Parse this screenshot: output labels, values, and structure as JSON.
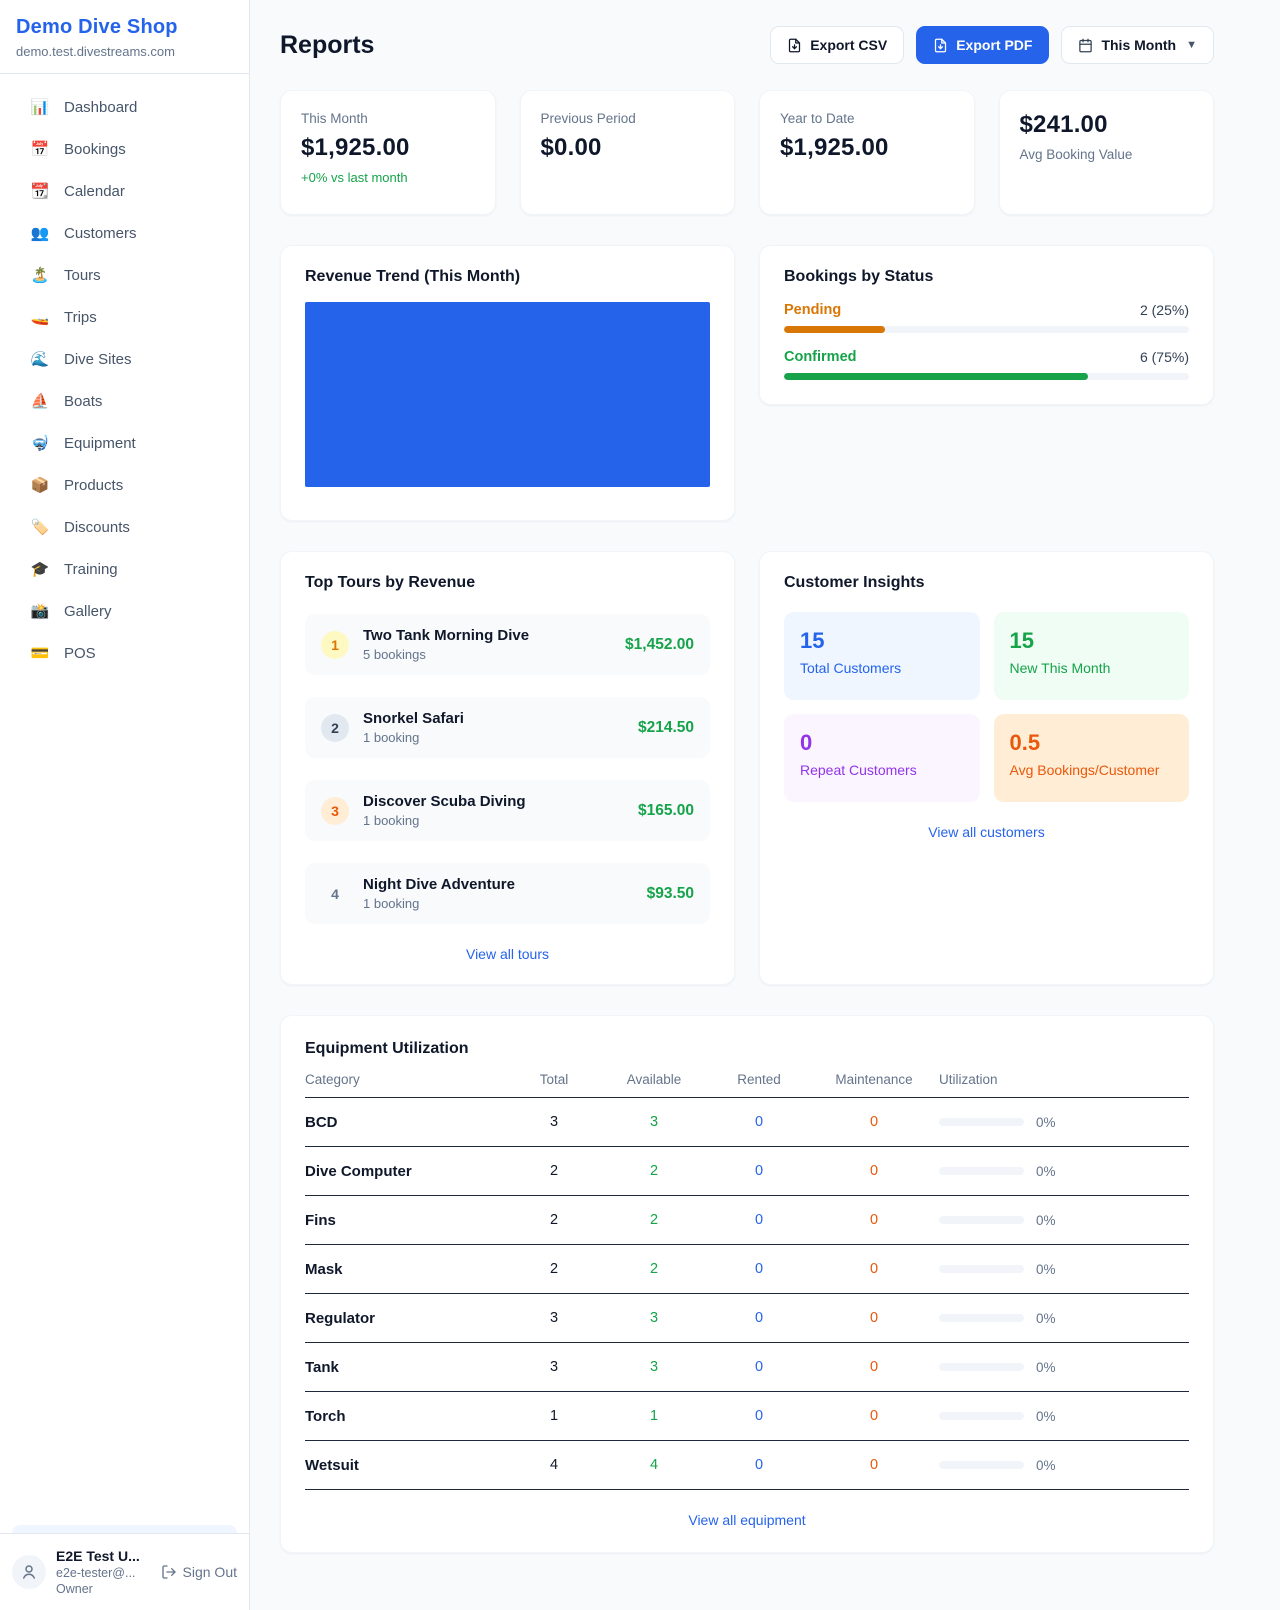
{
  "sidebar": {
    "shop_name": "Demo Dive Shop",
    "shop_domain": "demo.test.divestreams.com",
    "nav": [
      {
        "icon": "📊",
        "label": "Dashboard",
        "slug": "dashboard"
      },
      {
        "icon": "📅",
        "label": "Bookings",
        "slug": "bookings"
      },
      {
        "icon": "📆",
        "label": "Calendar",
        "slug": "calendar"
      },
      {
        "icon": "👥",
        "label": "Customers",
        "slug": "customers"
      },
      {
        "icon": "🏝️",
        "label": "Tours",
        "slug": "tours"
      },
      {
        "icon": "🚤",
        "label": "Trips",
        "slug": "trips"
      },
      {
        "icon": "🌊",
        "label": "Dive Sites",
        "slug": "dive-sites"
      },
      {
        "icon": "⛵",
        "label": "Boats",
        "slug": "boats"
      },
      {
        "icon": "🤿",
        "label": "Equipment",
        "slug": "equipment"
      },
      {
        "icon": "📦",
        "label": "Products",
        "slug": "products"
      },
      {
        "icon": "🏷️",
        "label": "Discounts",
        "slug": "discounts"
      },
      {
        "icon": "🎓",
        "label": "Training",
        "slug": "training"
      },
      {
        "icon": "📸",
        "label": "Gallery",
        "slug": "gallery"
      },
      {
        "icon": "💳",
        "label": "POS",
        "slug": "pos"
      }
    ],
    "user": {
      "name": "E2E Test U...",
      "email": "e2e-tester@...",
      "role": "Owner",
      "sign_out_label": "Sign Out"
    }
  },
  "header": {
    "title": "Reports",
    "export_csv_label": "Export CSV",
    "export_pdf_label": "Export PDF",
    "period_label": "This Month"
  },
  "stats": [
    {
      "label": "This Month",
      "value": "$1,925.00",
      "delta": "+0% vs last month"
    },
    {
      "label": "Previous Period",
      "value": "$0.00"
    },
    {
      "label": "Year to Date",
      "value": "$1,925.00"
    },
    {
      "label": "Avg Booking Value",
      "value": "$241.00",
      "value_first": true
    }
  ],
  "revenue_trend": {
    "title": "Revenue Trend (This Month)",
    "bar_color": "#2563eb",
    "fill_pct": 100
  },
  "bookings_by_status": {
    "title": "Bookings by Status",
    "items": [
      {
        "label": "Pending",
        "count": "2 (25%)",
        "pct": 25,
        "color": "#d97706"
      },
      {
        "label": "Confirmed",
        "count": "6 (75%)",
        "pct": 75,
        "color": "#16a34a"
      }
    ]
  },
  "top_tours": {
    "title": "Top Tours by Revenue",
    "view_all_label": "View all tours",
    "items": [
      {
        "rank": "1",
        "name": "Two Tank Morning Dive",
        "bookings": "5 bookings",
        "revenue": "$1,452.00",
        "badge_bg": "#fef9c3",
        "badge_color": "#d97706"
      },
      {
        "rank": "2",
        "name": "Snorkel Safari",
        "bookings": "1 booking",
        "revenue": "$214.50",
        "badge_bg": "#e2e8f0",
        "badge_color": "#334155"
      },
      {
        "rank": "3",
        "name": "Discover Scuba Diving",
        "bookings": "1 booking",
        "revenue": "$165.00",
        "badge_bg": "#ffedd5",
        "badge_color": "#ea580c"
      },
      {
        "rank": "4",
        "name": "Night Dive Adventure",
        "bookings": "1 booking",
        "revenue": "$93.50",
        "badge_bg": "transparent",
        "badge_color": "#64748b"
      }
    ]
  },
  "customer_insights": {
    "title": "Customer Insights",
    "view_all_label": "View all customers",
    "tiles": [
      {
        "value": "15",
        "label": "Total Customers",
        "bg": "#eff6ff",
        "color": "#2563eb"
      },
      {
        "value": "15",
        "label": "New This Month",
        "bg": "#f0fdf4",
        "color": "#16a34a"
      },
      {
        "value": "0",
        "label": "Repeat Customers",
        "bg": "#faf5ff",
        "color": "#9333ea"
      },
      {
        "value": "0.5",
        "label": "Avg Bookings/Customer",
        "bg": "#ffedd5",
        "color": "#ea580c"
      }
    ]
  },
  "equipment": {
    "title": "Equipment Utilization",
    "view_all_label": "View all equipment",
    "columns": [
      "Category",
      "Total",
      "Available",
      "Rented",
      "Maintenance",
      "Utilization"
    ],
    "rows": [
      {
        "category": "BCD",
        "total": "3",
        "available": "3",
        "rented": "0",
        "maintenance": "0",
        "utilization": "0%"
      },
      {
        "category": "Dive Computer",
        "total": "2",
        "available": "2",
        "rented": "0",
        "maintenance": "0",
        "utilization": "0%"
      },
      {
        "category": "Fins",
        "total": "2",
        "available": "2",
        "rented": "0",
        "maintenance": "0",
        "utilization": "0%"
      },
      {
        "category": "Mask",
        "total": "2",
        "available": "2",
        "rented": "0",
        "maintenance": "0",
        "utilization": "0%"
      },
      {
        "category": "Regulator",
        "total": "3",
        "available": "3",
        "rented": "0",
        "maintenance": "0",
        "utilization": "0%"
      },
      {
        "category": "Tank",
        "total": "3",
        "available": "3",
        "rented": "0",
        "maintenance": "0",
        "utilization": "0%"
      },
      {
        "category": "Torch",
        "total": "1",
        "available": "1",
        "rented": "0",
        "maintenance": "0",
        "utilization": "0%"
      },
      {
        "category": "Wetsuit",
        "total": "4",
        "available": "4",
        "rented": "0",
        "maintenance": "0",
        "utilization": "0%"
      }
    ]
  }
}
